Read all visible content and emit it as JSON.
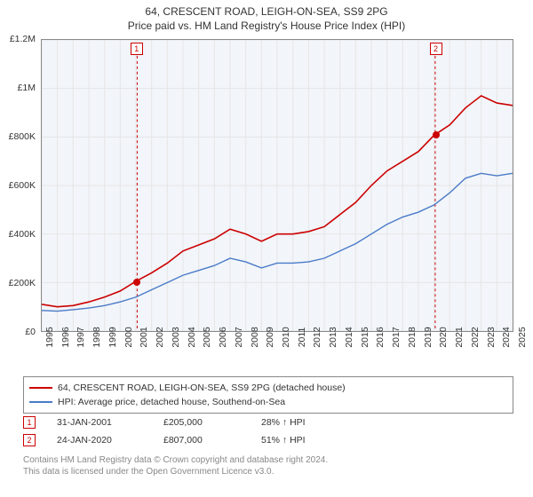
{
  "title": "64, CRESCENT ROAD, LEIGH-ON-SEA, SS9 2PG",
  "subtitle": "Price paid vs. HM Land Registry's House Price Index (HPI)",
  "chart": {
    "type": "line",
    "background_color": "#f2f5fa",
    "grid_color": "#e5e5e5",
    "border_color": "#888888",
    "ylim": [
      0,
      1200000
    ],
    "ytick_step": 200000,
    "ytick_labels": [
      "£0",
      "£200K",
      "£400K",
      "£600K",
      "£800K",
      "£1M",
      "£1.2M"
    ],
    "xlim": [
      1995,
      2025
    ],
    "xticks": [
      1995,
      1996,
      1997,
      1998,
      1999,
      2000,
      2001,
      2002,
      2003,
      2004,
      2005,
      2006,
      2007,
      2008,
      2009,
      2010,
      2011,
      2012,
      2013,
      2014,
      2015,
      2016,
      2017,
      2018,
      2019,
      2020,
      2021,
      2022,
      2023,
      2024,
      2025
    ],
    "series": [
      {
        "name": "property",
        "label": "64, CRESCENT ROAD, LEIGH-ON-SEA, SS9 2PG (detached house)",
        "color": "#cc0000",
        "line_width": 1.6,
        "data": [
          [
            1995,
            110000
          ],
          [
            1996,
            100000
          ],
          [
            1997,
            105000
          ],
          [
            1998,
            120000
          ],
          [
            1999,
            140000
          ],
          [
            2000,
            165000
          ],
          [
            2001,
            205000
          ],
          [
            2002,
            240000
          ],
          [
            2003,
            280000
          ],
          [
            2004,
            330000
          ],
          [
            2005,
            355000
          ],
          [
            2006,
            380000
          ],
          [
            2007,
            420000
          ],
          [
            2008,
            400000
          ],
          [
            2009,
            370000
          ],
          [
            2010,
            400000
          ],
          [
            2011,
            400000
          ],
          [
            2012,
            410000
          ],
          [
            2013,
            430000
          ],
          [
            2014,
            480000
          ],
          [
            2015,
            530000
          ],
          [
            2016,
            600000
          ],
          [
            2017,
            660000
          ],
          [
            2018,
            700000
          ],
          [
            2019,
            740000
          ],
          [
            2020,
            807000
          ],
          [
            2021,
            850000
          ],
          [
            2022,
            920000
          ],
          [
            2023,
            970000
          ],
          [
            2024,
            940000
          ],
          [
            2025,
            930000
          ]
        ]
      },
      {
        "name": "hpi",
        "label": "HPI: Average price, detached house, Southend-on-Sea",
        "color": "#4a7bc8",
        "line_width": 1.4,
        "data": [
          [
            1995,
            85000
          ],
          [
            1996,
            82000
          ],
          [
            1997,
            88000
          ],
          [
            1998,
            95000
          ],
          [
            1999,
            105000
          ],
          [
            2000,
            120000
          ],
          [
            2001,
            140000
          ],
          [
            2002,
            170000
          ],
          [
            2003,
            200000
          ],
          [
            2004,
            230000
          ],
          [
            2005,
            250000
          ],
          [
            2006,
            270000
          ],
          [
            2007,
            300000
          ],
          [
            2008,
            285000
          ],
          [
            2009,
            260000
          ],
          [
            2010,
            280000
          ],
          [
            2011,
            280000
          ],
          [
            2012,
            285000
          ],
          [
            2013,
            300000
          ],
          [
            2014,
            330000
          ],
          [
            2015,
            360000
          ],
          [
            2016,
            400000
          ],
          [
            2017,
            440000
          ],
          [
            2018,
            470000
          ],
          [
            2019,
            490000
          ],
          [
            2020,
            520000
          ],
          [
            2021,
            570000
          ],
          [
            2022,
            630000
          ],
          [
            2023,
            650000
          ],
          [
            2024,
            640000
          ],
          [
            2025,
            650000
          ]
        ]
      }
    ],
    "markers": [
      {
        "id": "1",
        "x": 2001.08,
        "y": 205000
      },
      {
        "id": "2",
        "x": 2020.07,
        "y": 807000
      }
    ]
  },
  "legend": {
    "series1_label": "64, CRESCENT ROAD, LEIGH-ON-SEA, SS9 2PG (detached house)",
    "series2_label": "HPI: Average price, detached house, Southend-on-Sea"
  },
  "datapoints": [
    {
      "id": "1",
      "date": "31-JAN-2001",
      "price": "£205,000",
      "hpi": "28% ↑ HPI"
    },
    {
      "id": "2",
      "date": "24-JAN-2020",
      "price": "£807,000",
      "hpi": "51% ↑ HPI"
    }
  ],
  "footer": {
    "line1": "Contains HM Land Registry data © Crown copyright and database right 2024.",
    "line2": "This data is licensed under the Open Government Licence v3.0."
  },
  "colors": {
    "red": "#cc0000",
    "blue": "#4a7bc8",
    "footer_text": "#888888"
  }
}
